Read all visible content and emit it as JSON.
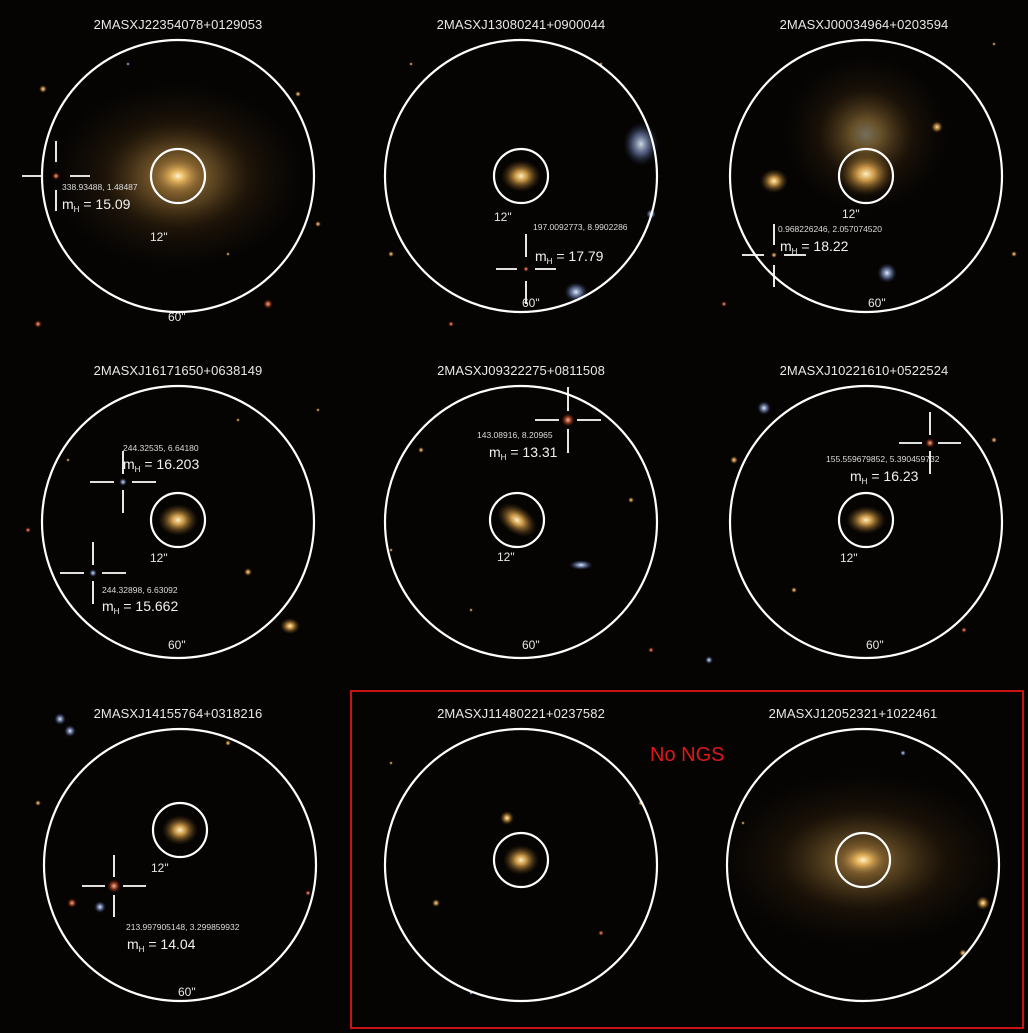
{
  "panels": [
    {
      "title": "2MASXJ22354078+0129053",
      "inner": "12\"",
      "outer": "60\"",
      "stars": [
        {
          "coords": "338.93488, 1.48487",
          "mag": "15.09"
        }
      ]
    },
    {
      "title": "2MASXJ13080241+0900044",
      "inner": "12\"",
      "outer": "60\"",
      "stars": [
        {
          "coords": "197.0092773, 8.9902286",
          "mag": "17.79"
        }
      ]
    },
    {
      "title": "2MASXJ00034964+0203594",
      "inner": "12\"",
      "outer": "60\"",
      "stars": [
        {
          "coords": "0.968226246, 2.057074520",
          "mag": "18.22"
        }
      ]
    },
    {
      "title": "2MASXJ16171650+0638149",
      "inner": "12\"",
      "outer": "60\"",
      "stars": [
        {
          "coords": "244.32535, 6.64180",
          "mag": "16.203"
        },
        {
          "coords": "244.32898, 6.63092",
          "mag": "15.662"
        }
      ]
    },
    {
      "title": "2MASXJ09322275+0811508",
      "inner": "12\"",
      "outer": "60\"",
      "stars": [
        {
          "coords": "143.08916, 8.20965",
          "mag": "13.31"
        }
      ]
    },
    {
      "title": "2MASXJ10221610+0522524",
      "inner": "12\"",
      "outer": "60\"",
      "stars": [
        {
          "coords": "155.559679852, 5.390459732",
          "mag": "16.23"
        }
      ]
    },
    {
      "title": "2MASXJ14155764+0318216",
      "inner": "12\"",
      "outer": "60\"",
      "stars": [
        {
          "coords": "213.997905148, 3.299859932",
          "mag": "14.04"
        }
      ]
    },
    {
      "title": "2MASXJ11480221+0237582",
      "stars": []
    },
    {
      "title": "2MASXJ12052321+1022461",
      "stars": []
    }
  ],
  "mag_prefix": "m",
  "mag_sub": "H",
  "no_ngs_label": "No NGS",
  "colors": {
    "circle": "#ffffff",
    "no_ngs": "#e01818",
    "galaxy": "#e8b45a"
  }
}
